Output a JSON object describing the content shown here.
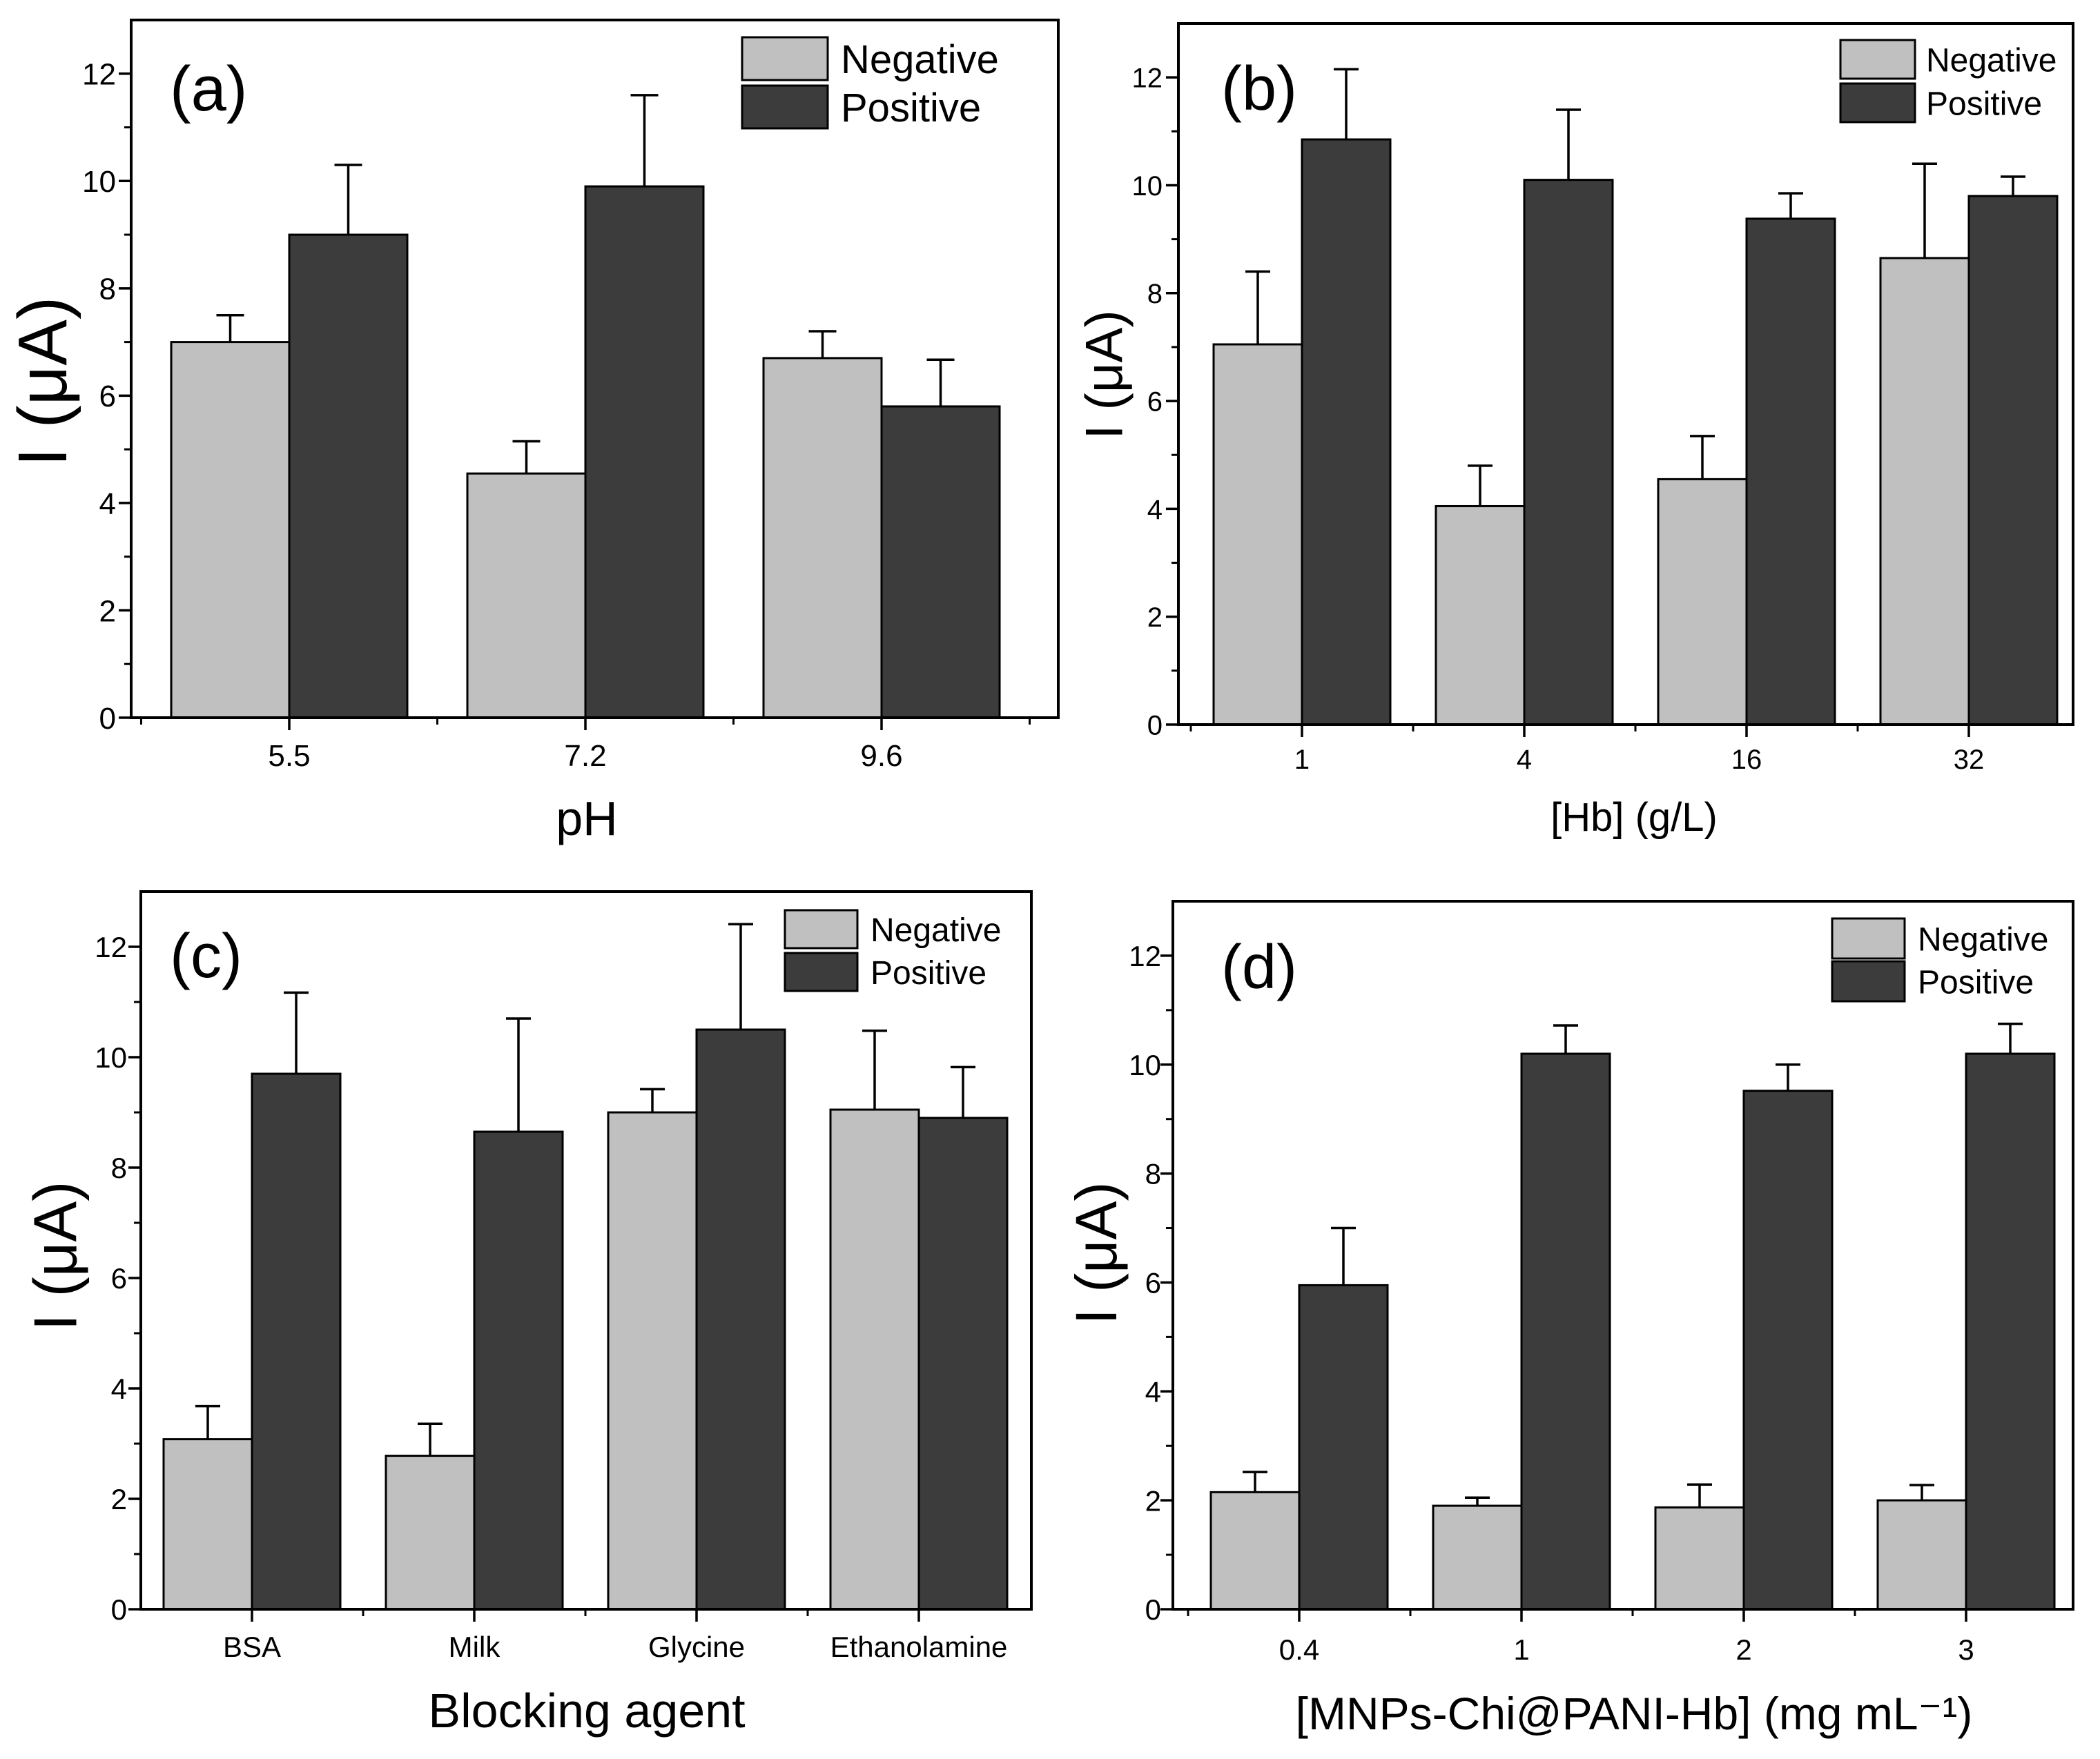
{
  "chart_data": [
    {
      "panel_label": "(a)",
      "type": "bar",
      "categories": [
        "5.5",
        "7.2",
        "9.6"
      ],
      "series": [
        {
          "name": "Negative",
          "color": "#c0c0c0",
          "values": [
            7.0,
            4.55,
            6.7
          ],
          "errors": [
            0.5,
            0.6,
            0.5
          ]
        },
        {
          "name": "Positive",
          "color": "#3c3c3c",
          "values": [
            9.0,
            9.9,
            5.8
          ],
          "errors": [
            1.3,
            1.7,
            0.87
          ]
        }
      ],
      "xlabel": "pH",
      "ylabel": "I (μA)",
      "ylim": [
        0,
        13
      ],
      "yticks": [
        0,
        2,
        4,
        6,
        8,
        10,
        12
      ],
      "legend": "top-right",
      "grid": false
    },
    {
      "panel_label": "(b)",
      "type": "bar",
      "categories": [
        "1",
        "4",
        "16",
        "32"
      ],
      "series": [
        {
          "name": "Negative",
          "color": "#c0c0c0",
          "values": [
            7.05,
            4.05,
            4.55,
            8.65
          ],
          "errors": [
            1.35,
            0.75,
            0.8,
            1.75
          ]
        },
        {
          "name": "Positive",
          "color": "#3c3c3c",
          "values": [
            10.85,
            10.1,
            9.38,
            9.8
          ],
          "errors": [
            1.3,
            1.3,
            0.47,
            0.36
          ]
        }
      ],
      "xlabel": "[Hb] (g/L)",
      "ylabel": "I (μA)",
      "ylim": [
        0,
        13
      ],
      "yticks": [
        0,
        2,
        4,
        6,
        8,
        10,
        12
      ],
      "legend": "top-right",
      "grid": false
    },
    {
      "panel_label": "(c)",
      "type": "bar",
      "categories": [
        "BSA",
        "Milk",
        "Glycine",
        "Ethanolamine"
      ],
      "series": [
        {
          "name": "Negative",
          "color": "#c0c0c0",
          "values": [
            3.08,
            2.78,
            9.0,
            9.05
          ],
          "errors": [
            0.6,
            0.58,
            0.42,
            1.43
          ]
        },
        {
          "name": "Positive",
          "color": "#3c3c3c",
          "values": [
            9.7,
            8.65,
            10.5,
            8.9
          ],
          "errors": [
            1.47,
            2.05,
            1.91,
            0.92
          ]
        }
      ],
      "xlabel": "Blocking agent",
      "ylabel": "I (μA)",
      "ylim": [
        0,
        13
      ],
      "yticks": [
        0,
        2,
        4,
        6,
        8,
        10,
        12
      ],
      "legend": "top-right",
      "grid": false
    },
    {
      "panel_label": "(d)",
      "type": "bar",
      "categories": [
        "0.4",
        "1",
        "2",
        "3"
      ],
      "series": [
        {
          "name": "Negative",
          "color": "#c0c0c0",
          "values": [
            2.15,
            1.9,
            1.87,
            2.0
          ],
          "errors": [
            0.37,
            0.15,
            0.42,
            0.28
          ]
        },
        {
          "name": "Positive",
          "color": "#3c3c3c",
          "values": [
            5.95,
            10.2,
            9.52,
            10.2
          ],
          "errors": [
            1.05,
            0.52,
            0.48,
            0.55
          ]
        }
      ],
      "xlabel": "[MNPs-Chi@PANI-Hb] (mg mL⁻¹)",
      "ylabel": "I (μA)",
      "ylim": [
        0,
        13
      ],
      "yticks": [
        0,
        2,
        4,
        6,
        8,
        10,
        12
      ],
      "legend": "top-right",
      "grid": false
    }
  ]
}
